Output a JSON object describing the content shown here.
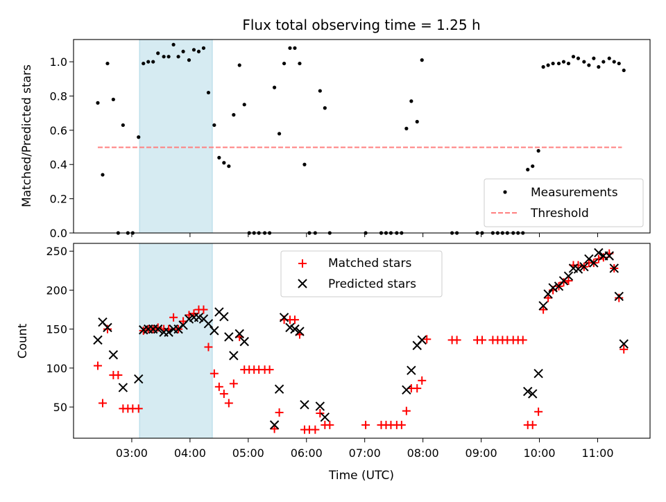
{
  "title": "Flux total observing time = 1.25 h",
  "colors": {
    "measurement": "#000000",
    "threshold": "#ff7f7f",
    "matched": "#ff0000",
    "predicted": "#000000",
    "shade": "#add8e6"
  },
  "chart_data": [
    {
      "type": "scatter",
      "name": "ratio-panel",
      "ylabel": "Matched/Predicted stars",
      "ylim": [
        0,
        1.13
      ],
      "yticks": [
        0.0,
        0.2,
        0.4,
        0.6,
        0.8,
        1.0
      ],
      "ytick_labels": [
        "0.0",
        "0.2",
        "0.4",
        "0.6",
        "0.8",
        "1.0"
      ],
      "grid": false,
      "legend_position": "lower-right",
      "shaded_interval": [
        "03:08",
        "04:23"
      ],
      "threshold": {
        "label": "Threshold",
        "value": 0.5,
        "x": [
          "02:25",
          "11:25"
        ],
        "style": "dashed"
      },
      "series": [
        {
          "name": "Measurements",
          "marker": "dot",
          "points": [
            [
              "02:25",
              0.76
            ],
            [
              "02:30",
              0.34
            ],
            [
              "02:35",
              0.99
            ],
            [
              "02:41",
              0.78
            ],
            [
              "02:46",
              0.0
            ],
            [
              "02:51",
              0.63
            ],
            [
              "02:56",
              0.0
            ],
            [
              "03:01",
              0.0
            ],
            [
              "03:07",
              0.56
            ],
            [
              "03:12",
              0.99
            ],
            [
              "03:17",
              1.0
            ],
            [
              "03:22",
              1.0
            ],
            [
              "03:27",
              1.05
            ],
            [
              "03:33",
              1.03
            ],
            [
              "03:38",
              1.03
            ],
            [
              "03:43",
              1.1
            ],
            [
              "03:48",
              1.03
            ],
            [
              "03:53",
              1.06
            ],
            [
              "03:59",
              1.01
            ],
            [
              "04:04",
              1.07
            ],
            [
              "04:09",
              1.06
            ],
            [
              "04:14",
              1.08
            ],
            [
              "04:19",
              0.82
            ],
            [
              "04:25",
              0.63
            ],
            [
              "04:30",
              0.44
            ],
            [
              "04:35",
              0.41
            ],
            [
              "04:40",
              0.39
            ],
            [
              "04:45",
              0.69
            ],
            [
              "04:51",
              0.98
            ],
            [
              "04:56",
              0.75
            ],
            [
              "05:01",
              0.0
            ],
            [
              "05:06",
              0.0
            ],
            [
              "05:11",
              0.0
            ],
            [
              "05:17",
              0.0
            ],
            [
              "05:22",
              0.0
            ],
            [
              "05:27",
              0.85
            ],
            [
              "05:32",
              0.58
            ],
            [
              "05:37",
              0.99
            ],
            [
              "05:43",
              1.08
            ],
            [
              "05:48",
              1.08
            ],
            [
              "05:53",
              0.99
            ],
            [
              "05:58",
              0.4
            ],
            [
              "06:03",
              0.0
            ],
            [
              "06:09",
              0.0
            ],
            [
              "06:14",
              0.83
            ],
            [
              "06:19",
              0.73
            ],
            [
              "06:24",
              0.0
            ],
            [
              "07:01",
              0.0
            ],
            [
              "07:17",
              0.0
            ],
            [
              "07:22",
              0.0
            ],
            [
              "07:27",
              0.0
            ],
            [
              "07:33",
              0.0
            ],
            [
              "07:38",
              0.0
            ],
            [
              "07:43",
              0.61
            ],
            [
              "07:48",
              0.77
            ],
            [
              "07:54",
              0.65
            ],
            [
              "07:59",
              1.01
            ],
            [
              "08:30",
              0.0
            ],
            [
              "08:35",
              0.0
            ],
            [
              "08:56",
              0.0
            ],
            [
              "09:01",
              0.0
            ],
            [
              "09:12",
              0.0
            ],
            [
              "09:17",
              0.0
            ],
            [
              "09:22",
              0.0
            ],
            [
              "09:27",
              0.0
            ],
            [
              "09:33",
              0.0
            ],
            [
              "09:38",
              0.0
            ],
            [
              "09:43",
              0.0
            ],
            [
              "09:48",
              0.37
            ],
            [
              "09:53",
              0.39
            ],
            [
              "09:59",
              0.48
            ],
            [
              "10:04",
              0.97
            ],
            [
              "10:09",
              0.98
            ],
            [
              "10:14",
              0.99
            ],
            [
              "10:20",
              0.99
            ],
            [
              "10:25",
              1.0
            ],
            [
              "10:30",
              0.99
            ],
            [
              "10:35",
              1.03
            ],
            [
              "10:40",
              1.02
            ],
            [
              "10:46",
              1.0
            ],
            [
              "10:51",
              0.98
            ],
            [
              "10:56",
              1.02
            ],
            [
              "11:01",
              0.97
            ],
            [
              "11:06",
              1.0
            ],
            [
              "11:12",
              1.02
            ],
            [
              "11:17",
              1.0
            ],
            [
              "11:22",
              0.99
            ],
            [
              "11:27",
              0.95
            ]
          ]
        }
      ]
    },
    {
      "type": "scatter",
      "name": "count-panel",
      "xlabel": "Time (UTC)",
      "ylabel": "Count",
      "ylim": [
        10,
        260
      ],
      "yticks": [
        50,
        100,
        150,
        200,
        250
      ],
      "ytick_labels": [
        "50",
        "100",
        "150",
        "200",
        "250"
      ],
      "xlim": [
        "02:00",
        "11:54"
      ],
      "xticks": [
        "03:00",
        "04:00",
        "05:00",
        "06:00",
        "07:00",
        "08:00",
        "09:00",
        "10:00",
        "11:00"
      ],
      "grid": false,
      "legend_position": "upper-center",
      "shaded_interval": [
        "03:08",
        "04:23"
      ],
      "series": [
        {
          "name": "Matched stars",
          "marker": "plus",
          "points": [
            [
              "02:25",
              103
            ],
            [
              "02:30",
              55
            ],
            [
              "02:35",
              150
            ],
            [
              "02:41",
              91
            ],
            [
              "02:46",
              91
            ],
            [
              "02:51",
              48
            ],
            [
              "02:56",
              48
            ],
            [
              "03:01",
              48
            ],
            [
              "03:07",
              48
            ],
            [
              "03:12",
              148
            ],
            [
              "03:17",
              150
            ],
            [
              "03:22",
              150
            ],
            [
              "03:27",
              152
            ],
            [
              "03:33",
              150
            ],
            [
              "03:38",
              150
            ],
            [
              "03:43",
              165
            ],
            [
              "03:48",
              150
            ],
            [
              "03:53",
              160
            ],
            [
              "03:59",
              168
            ],
            [
              "04:04",
              170
            ],
            [
              "04:09",
              175
            ],
            [
              "04:14",
              175
            ],
            [
              "04:19",
              127
            ],
            [
              "04:25",
              93
            ],
            [
              "04:30",
              76
            ],
            [
              "04:35",
              67
            ],
            [
              "04:40",
              55
            ],
            [
              "04:45",
              80
            ],
            [
              "04:51",
              140
            ],
            [
              "04:56",
              98
            ],
            [
              "05:01",
              98
            ],
            [
              "05:06",
              98
            ],
            [
              "05:11",
              98
            ],
            [
              "05:17",
              98
            ],
            [
              "05:22",
              98
            ],
            [
              "05:27",
              22
            ],
            [
              "05:32",
              43
            ],
            [
              "05:37",
              162
            ],
            [
              "05:43",
              162
            ],
            [
              "05:48",
              162
            ],
            [
              "05:53",
              143
            ],
            [
              "05:58",
              21
            ],
            [
              "06:03",
              21
            ],
            [
              "06:09",
              21
            ],
            [
              "06:14",
              42
            ],
            [
              "06:19",
              27
            ],
            [
              "06:24",
              27
            ],
            [
              "07:01",
              27
            ],
            [
              "07:17",
              27
            ],
            [
              "07:22",
              27
            ],
            [
              "07:27",
              27
            ],
            [
              "07:33",
              27
            ],
            [
              "07:38",
              27
            ],
            [
              "07:43",
              45
            ],
            [
              "07:48",
              74
            ],
            [
              "07:54",
              74
            ],
            [
              "07:59",
              84
            ],
            [
              "08:04",
              137
            ],
            [
              "08:30",
              136
            ],
            [
              "08:35",
              136
            ],
            [
              "08:56",
              136
            ],
            [
              "09:01",
              136
            ],
            [
              "09:12",
              136
            ],
            [
              "09:17",
              136
            ],
            [
              "09:22",
              136
            ],
            [
              "09:27",
              136
            ],
            [
              "09:33",
              136
            ],
            [
              "09:38",
              136
            ],
            [
              "09:43",
              136
            ],
            [
              "09:48",
              27
            ],
            [
              "09:53",
              27
            ],
            [
              "09:59",
              44
            ],
            [
              "10:04",
              175
            ],
            [
              "10:09",
              190
            ],
            [
              "10:14",
              200
            ],
            [
              "10:20",
              205
            ],
            [
              "10:25",
              210
            ],
            [
              "10:30",
              212
            ],
            [
              "10:35",
              232
            ],
            [
              "10:40",
              232
            ],
            [
              "10:46",
              230
            ],
            [
              "10:51",
              235
            ],
            [
              "10:56",
              235
            ],
            [
              "11:01",
              240
            ],
            [
              "11:06",
              242
            ],
            [
              "11:12",
              247
            ],
            [
              "11:17",
              228
            ],
            [
              "11:22",
              190
            ],
            [
              "11:27",
              124
            ]
          ]
        },
        {
          "name": "Predicted stars",
          "marker": "cross",
          "points": [
            [
              "02:25",
              136
            ],
            [
              "02:30",
              159
            ],
            [
              "02:35",
              152
            ],
            [
              "02:41",
              117
            ],
            [
              "02:51",
              75
            ],
            [
              "03:07",
              86
            ],
            [
              "03:12",
              149
            ],
            [
              "03:17",
              150
            ],
            [
              "03:22",
              150
            ],
            [
              "03:27",
              150
            ],
            [
              "03:33",
              146
            ],
            [
              "03:38",
              146
            ],
            [
              "03:43",
              150
            ],
            [
              "03:48",
              150
            ],
            [
              "03:53",
              155
            ],
            [
              "03:59",
              163
            ],
            [
              "04:04",
              165
            ],
            [
              "04:09",
              165
            ],
            [
              "04:14",
              163
            ],
            [
              "04:19",
              157
            ],
            [
              "04:25",
              148
            ],
            [
              "04:30",
              172
            ],
            [
              "04:35",
              166
            ],
            [
              "04:40",
              140
            ],
            [
              "04:45",
              116
            ],
            [
              "04:51",
              144
            ],
            [
              "04:56",
              134
            ],
            [
              "05:27",
              27
            ],
            [
              "05:32",
              73
            ],
            [
              "05:37",
              165
            ],
            [
              "05:43",
              152
            ],
            [
              "05:48",
              150
            ],
            [
              "05:53",
              147
            ],
            [
              "05:58",
              53
            ],
            [
              "06:14",
              51
            ],
            [
              "06:19",
              37
            ],
            [
              "07:43",
              72
            ],
            [
              "07:48",
              97
            ],
            [
              "07:54",
              129
            ],
            [
              "07:59",
              136
            ],
            [
              "09:48",
              70
            ],
            [
              "09:53",
              67
            ],
            [
              "09:59",
              93
            ],
            [
              "10:04",
              180
            ],
            [
              "10:09",
              195
            ],
            [
              "10:14",
              203
            ],
            [
              "10:20",
              205
            ],
            [
              "10:25",
              212
            ],
            [
              "10:30",
              218
            ],
            [
              "10:35",
              228
            ],
            [
              "10:40",
              227
            ],
            [
              "10:46",
              230
            ],
            [
              "10:51",
              240
            ],
            [
              "10:56",
              235
            ],
            [
              "11:01",
              248
            ],
            [
              "11:06",
              244
            ],
            [
              "11:12",
              244
            ],
            [
              "11:17",
              228
            ],
            [
              "11:22",
              192
            ],
            [
              "11:27",
              131
            ]
          ]
        }
      ]
    }
  ]
}
